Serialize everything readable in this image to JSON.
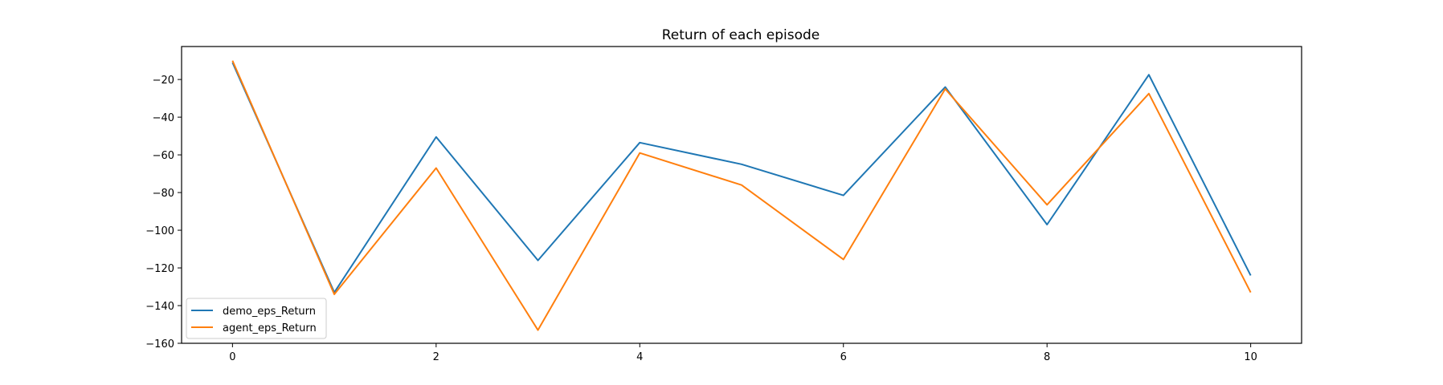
{
  "chart_data": {
    "type": "line",
    "title": "Return of each episode",
    "xlabel": "",
    "ylabel": "",
    "x": [
      0,
      1,
      2,
      3,
      4,
      5,
      6,
      7,
      8,
      9,
      10
    ],
    "xlim": [
      -0.5,
      10.5
    ],
    "ylim": [
      -160,
      -2.5
    ],
    "xticks": [
      0,
      2,
      4,
      6,
      8,
      10
    ],
    "yticks": [
      -20,
      -40,
      -60,
      -80,
      -100,
      -120,
      -140,
      -160
    ],
    "xtick_labels": [
      "0",
      "2",
      "4",
      "6",
      "8",
      "10"
    ],
    "ytick_labels": [
      "−20",
      "−40",
      "−60",
      "−80",
      "−100",
      "−120",
      "−140",
      "−160"
    ],
    "grid": false,
    "legend_position": "lower-left",
    "series": [
      {
        "name": "demo_eps_Return",
        "color": "#1f77b4",
        "values": [
          -11,
          -133,
          -50.5,
          -116,
          -53.5,
          -65,
          -81.5,
          -24,
          -97,
          -17.5,
          -124
        ]
      },
      {
        "name": "agent_eps_Return",
        "color": "#ff7f0e",
        "values": [
          -10,
          -134,
          -67,
          -153,
          -59,
          -76,
          -115.5,
          -25,
          -86.5,
          -27.5,
          -133
        ]
      }
    ]
  }
}
